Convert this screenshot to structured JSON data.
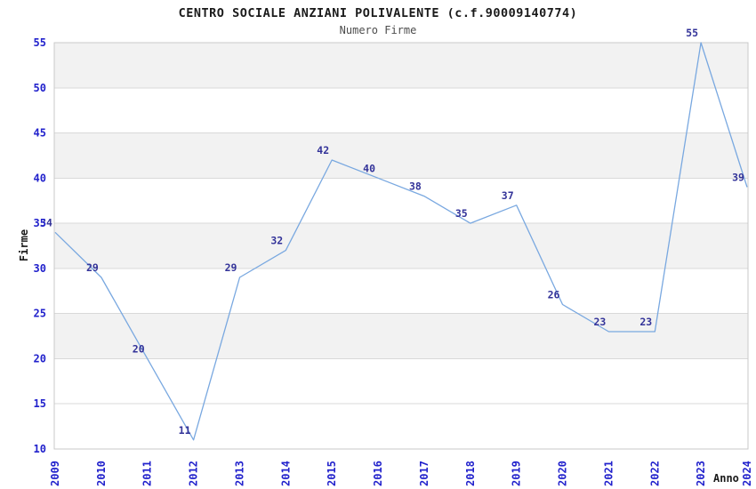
{
  "chart_data": {
    "type": "line",
    "title": "CENTRO SOCIALE ANZIANI POLIVALENTE (c.f.90009140774)",
    "subtitle": "Numero Firme",
    "xlabel": "Anno",
    "ylabel": "Firme",
    "x": [
      "2009",
      "2010",
      "2011",
      "2012",
      "2013",
      "2014",
      "2015",
      "2016",
      "2017",
      "2018",
      "2019",
      "2020",
      "2021",
      "2022",
      "2023",
      "2024"
    ],
    "values": [
      34,
      29,
      20,
      11,
      29,
      32,
      42,
      40,
      38,
      35,
      37,
      26,
      23,
      23,
      55,
      39
    ],
    "ylim": [
      10,
      55
    ],
    "ytick_step": 5,
    "yticks": [
      10,
      15,
      20,
      25,
      30,
      35,
      40,
      45,
      50,
      55
    ],
    "grid": "horizontal-bands",
    "legend_position": "none",
    "data_labels_shown": true
  },
  "colors": {
    "line": "#79a8e0",
    "tick_label": "#2222cc",
    "data_label": "#333399",
    "band_fill": "#f2f2f2",
    "grid_line": "#d9d9d9",
    "plot_border": "#c9c9c9",
    "title": "#1a1a1a",
    "subtitle": "#4d4d4d",
    "background": "#ffffff"
  }
}
